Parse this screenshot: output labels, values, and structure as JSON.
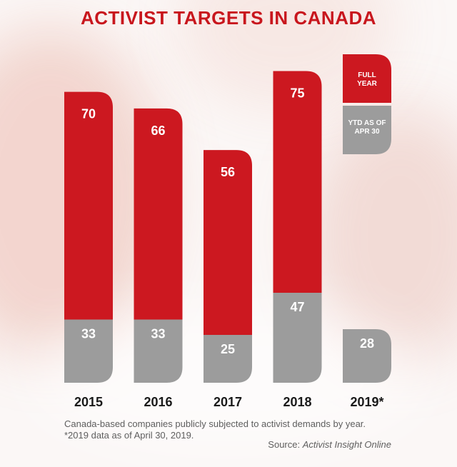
{
  "title": "ACTIVIST TARGETS IN CANADA",
  "footnote": {
    "line1": "Canada-based companies publicly subjected to activist demands by year.",
    "line2": "*2019 data as of April 30, 2019.",
    "source_prefix": "Source: ",
    "source_name": "Activist Insight Online"
  },
  "legend": {
    "full_year_line1": "FULL",
    "full_year_line2": "YEAR",
    "ytd_line1": "YTD AS OF",
    "ytd_line2": "APR 30"
  },
  "colors": {
    "red": "#cc1820",
    "gray": "#9c9c9c",
    "title": "#c8161d"
  },
  "chart_data": {
    "type": "bar",
    "stacked": true,
    "categories": [
      "2015",
      "2016",
      "2017",
      "2018",
      "2019*"
    ],
    "series": [
      {
        "name": "YTD AS OF APR 30",
        "values": [
          33,
          33,
          25,
          47,
          28
        ],
        "color": "#9c9c9c"
      },
      {
        "name": "FULL YEAR",
        "values": [
          70,
          66,
          56,
          75,
          null
        ],
        "color": "#cc1820"
      }
    ],
    "title": "ACTIVIST TARGETS IN CANADA",
    "xlabel": "",
    "ylabel": "",
    "grid": false,
    "legend_position": "top-right"
  }
}
